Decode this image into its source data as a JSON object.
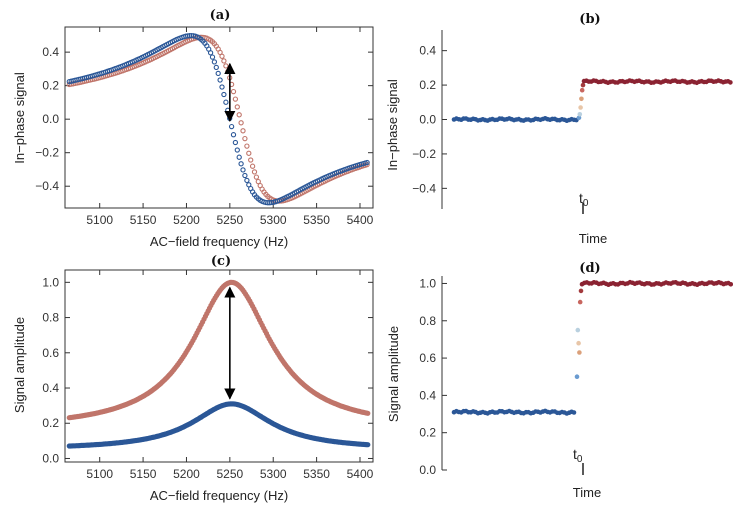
{
  "colors": {
    "blue": "#2b5797",
    "red": "#c0756a",
    "dark_red": "#8b2332",
    "transition": [
      "#6a9bd0",
      "#b9d0df",
      "#e8c6a8",
      "#dba07a",
      "#c8665f",
      "#a33a3d"
    ],
    "arrow": "#000000"
  },
  "chart_data": [
    {
      "id": "a",
      "type": "scatter",
      "title": "(a)",
      "xlabel": "AC−field frequency (Hz)",
      "ylabel": "In−phase signal",
      "xlim": [
        5060,
        5415
      ],
      "ylim": [
        -0.53,
        0.55
      ],
      "xticks": [
        5100,
        5150,
        5200,
        5250,
        5300,
        5350,
        5400
      ],
      "yticks": [
        -0.4,
        -0.2,
        0.0,
        0.2,
        0.4
      ],
      "ytick_labels": [
        "−0.4",
        "−0.2",
        "0.0",
        "0.2",
        "0.4"
      ],
      "series": [
        {
          "color": "blue",
          "f0": 5250,
          "width": 45,
          "amp": 0.5,
          "x_end": 5410,
          "y_end": -0.14
        },
        {
          "color": "red",
          "f0": 5262,
          "width": 45,
          "amp": 0.49,
          "x_end": 5410,
          "y_end": -0.16
        }
      ],
      "annotation": {
        "type": "double-arrow",
        "x": 5250,
        "y_from": 0.33,
        "y_to": -0.01
      }
    },
    {
      "id": "b",
      "type": "scatter",
      "title": "(b)",
      "xlabel": "Time",
      "ylabel": "In−phase signal",
      "ylim": [
        -0.52,
        0.52
      ],
      "yticks": [
        -0.4,
        -0.2,
        0.0,
        0.2,
        0.4
      ],
      "ytick_labels": [
        "−0.4",
        "−0.2",
        "0.0",
        "0.2",
        "0.4"
      ],
      "t0_label": "t",
      "t0_sub": "0",
      "before_value": 0.0,
      "after_value": 0.22,
      "transition_values": [
        0.01,
        0.03,
        0.07,
        0.12,
        0.17,
        0.2
      ]
    },
    {
      "id": "c",
      "type": "scatter",
      "title": "(c)",
      "xlabel": "AC−field frequency (Hz)",
      "ylabel": "Signal amplitude",
      "xlim": [
        5060,
        5415
      ],
      "ylim": [
        -0.02,
        1.07
      ],
      "xticks": [
        5100,
        5150,
        5200,
        5250,
        5300,
        5350,
        5400
      ],
      "yticks": [
        0.0,
        0.2,
        0.4,
        0.6,
        0.8,
        1.0
      ],
      "ytick_labels": [
        "0.0",
        "0.2",
        "0.4",
        "0.6",
        "0.8",
        "1.0"
      ],
      "series": [
        {
          "color": "red",
          "f0": 5252,
          "width": 55,
          "peak": 1.0,
          "x_start": 5065,
          "y_start": 0.165,
          "x_end": 5410,
          "y_end": 0.165
        },
        {
          "color": "blue",
          "f0": 5252,
          "width": 55,
          "peak": 0.31,
          "x_start": 5065,
          "y_start": 0.05,
          "x_end": 5410,
          "y_end": 0.05
        }
      ],
      "annotation": {
        "type": "double-arrow",
        "x": 5250,
        "y_from": 0.97,
        "y_to": 0.34
      }
    },
    {
      "id": "d",
      "type": "scatter",
      "title": "(d)",
      "xlabel": "Time",
      "ylabel": "Signal amplitude",
      "ylim": [
        0.0,
        1.04
      ],
      "yticks": [
        0.0,
        0.2,
        0.4,
        0.6,
        0.8,
        1.0
      ],
      "ytick_labels": [
        "0.0",
        "0.2",
        "0.4",
        "0.6",
        "0.8",
        "1.0"
      ],
      "t0_label": "t",
      "t0_sub": "0",
      "before_value": 0.31,
      "after_value": 1.0,
      "transition_values": [
        0.5,
        0.75,
        0.68,
        0.63,
        0.9,
        0.96
      ]
    }
  ]
}
